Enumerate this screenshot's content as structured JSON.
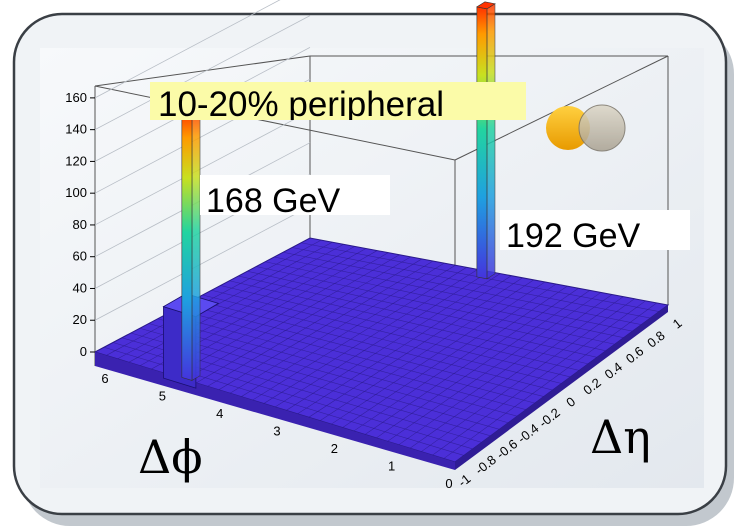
{
  "chart_data": {
    "type": "lego3d",
    "title": "10-20% peripheral",
    "xlabel": "Δϕ",
    "ylabel": "Δη",
    "x_range": [
      0,
      6.28
    ],
    "y_range": [
      -1,
      1
    ],
    "z_range": [
      0,
      170
    ],
    "x_ticks": [
      "0",
      "1",
      "2",
      "3",
      "4",
      "5",
      "6"
    ],
    "y_ticks": [
      "-1",
      "-0.8",
      "-0.6",
      "-0.4",
      "-0.2",
      "0",
      "0.2",
      "0.4",
      "0.6",
      "0.8",
      "1"
    ],
    "z_ticks": [
      "0",
      "20",
      "40",
      "60",
      "80",
      "100",
      "120",
      "140",
      "160"
    ],
    "background_level": 2,
    "peaks": [
      {
        "x": 4.7,
        "y": -0.95,
        "value": 168,
        "label": "168 GeV",
        "base_value": 45
      },
      {
        "x": 3.1,
        "y": 0.95,
        "value": 192,
        "label": "192 GeV"
      }
    ],
    "colors": {
      "base": "#4b2fd8",
      "title_bg": "#fbfba8",
      "tower_bottom": "#4433dd",
      "tower_top": "#ff3300"
    }
  }
}
